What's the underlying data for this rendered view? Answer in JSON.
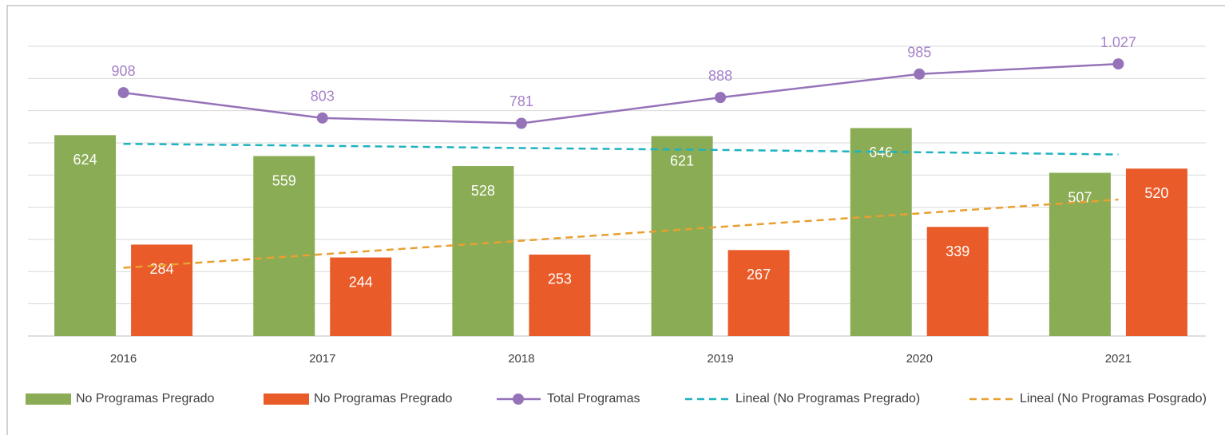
{
  "chart_data": {
    "type": "bar",
    "categories": [
      "2016",
      "2017",
      "2018",
      "2019",
      "2020",
      "2021"
    ],
    "ylim": [
      0,
      900
    ],
    "yticks": [
      0,
      100,
      200,
      300,
      400,
      500,
      600,
      700,
      800,
      900
    ],
    "grid": true,
    "y2lim": [
      -100,
      1100
    ],
    "legend": "bottom",
    "series": [
      {
        "name": "No Programas Pregrado",
        "kind": "bar",
        "color": "#8aac55",
        "values": [
          624,
          559,
          528,
          621,
          646,
          507
        ]
      },
      {
        "name": "No Programas Pregrado",
        "kind": "bar",
        "color": "#e95b28",
        "values": [
          284,
          244,
          253,
          267,
          339,
          520
        ]
      },
      {
        "name": "Total Programas",
        "kind": "line",
        "axis": "y2",
        "marker": "circle",
        "color": "#9673b9",
        "label_color": "#a682c9",
        "values": [
          908,
          803,
          781,
          888,
          985,
          1027
        ],
        "value_labels": [
          "908",
          "803",
          "781",
          "888",
          "985",
          "1.027"
        ]
      },
      {
        "name": "Lineal (No Programas Pregrado)",
        "kind": "line",
        "dashed": true,
        "color": "#1fb3c0",
        "values": [
          597,
          591,
          584,
          578,
          571,
          564
        ]
      },
      {
        "name": "Lineal (No Programas Posgrado)",
        "kind": "line",
        "dashed": true,
        "color": "#e8a030",
        "values": [
          212,
          254,
          296,
          339,
          381,
          424
        ]
      }
    ]
  }
}
